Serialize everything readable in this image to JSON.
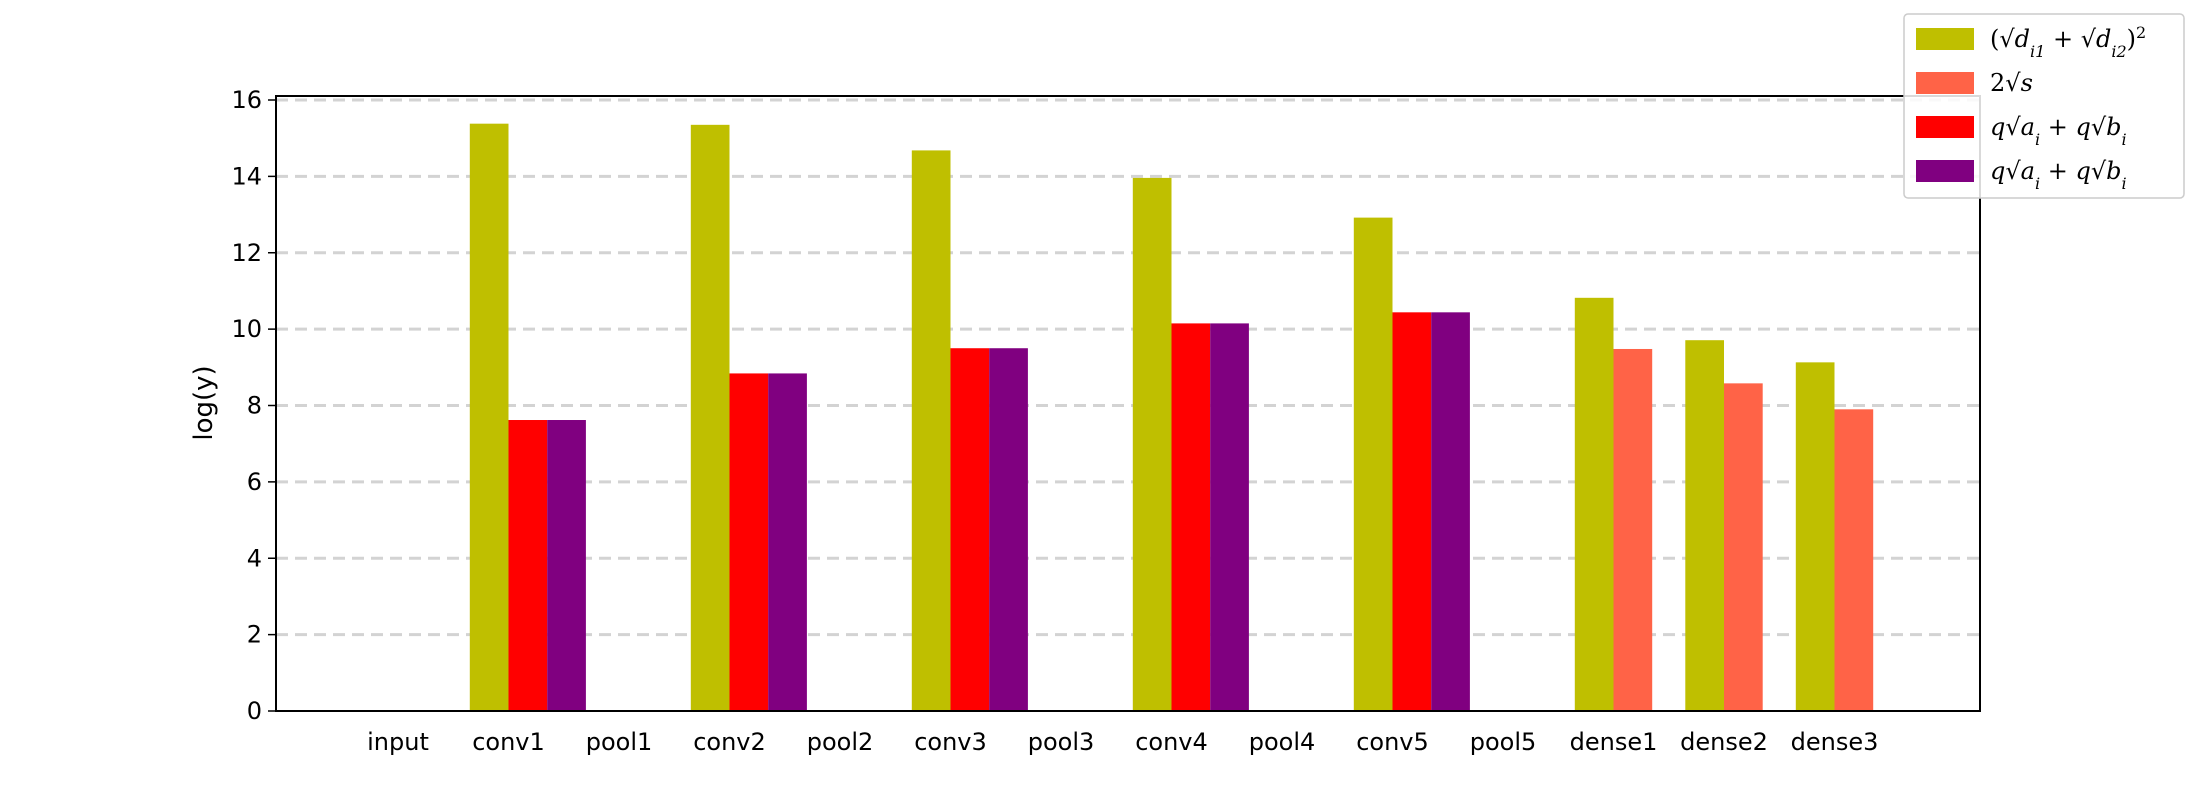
{
  "chart_data": {
    "type": "bar",
    "title": "",
    "xlabel": "",
    "ylabel": "log(y)",
    "ylim": [
      0,
      16
    ],
    "yticks": [
      0,
      2,
      4,
      6,
      8,
      10,
      12,
      14,
      16
    ],
    "grid": "y-dashed",
    "legend_position": "top-right",
    "categories": [
      "input",
      "conv1",
      "pool1",
      "conv2",
      "pool2",
      "conv3",
      "pool3",
      "conv4",
      "pool4",
      "conv5",
      "pool5",
      "dense1",
      "dense2",
      "dense3"
    ],
    "series": [
      {
        "name": "(√d_i1 + √d_i2)^2",
        "color": "#bfbf00",
        "values": [
          0,
          15.38,
          0,
          15.35,
          0,
          14.68,
          0,
          13.96,
          0,
          12.92,
          0,
          10.82,
          9.71,
          9.13
        ]
      },
      {
        "name": "2√s",
        "color": "#ff6347",
        "values": [
          0,
          0,
          0,
          0,
          0,
          0,
          0,
          0,
          0,
          0,
          0,
          9.48,
          8.58,
          7.9
        ]
      },
      {
        "name": "q√a_i + q√b_i",
        "color": "#ff0000",
        "values": [
          0,
          7.62,
          0,
          8.84,
          0,
          9.5,
          0,
          10.15,
          0,
          10.44,
          0,
          0,
          0,
          0
        ]
      },
      {
        "name": "q√a_i + q√b_i",
        "color": "#800080",
        "values": [
          0,
          7.62,
          0,
          8.84,
          0,
          9.5,
          0,
          10.15,
          0,
          10.44,
          0,
          0,
          0,
          0
        ]
      }
    ],
    "bar_positions": {
      "conv": [
        0,
        2,
        3
      ],
      "dense": [
        0,
        1
      ]
    }
  }
}
